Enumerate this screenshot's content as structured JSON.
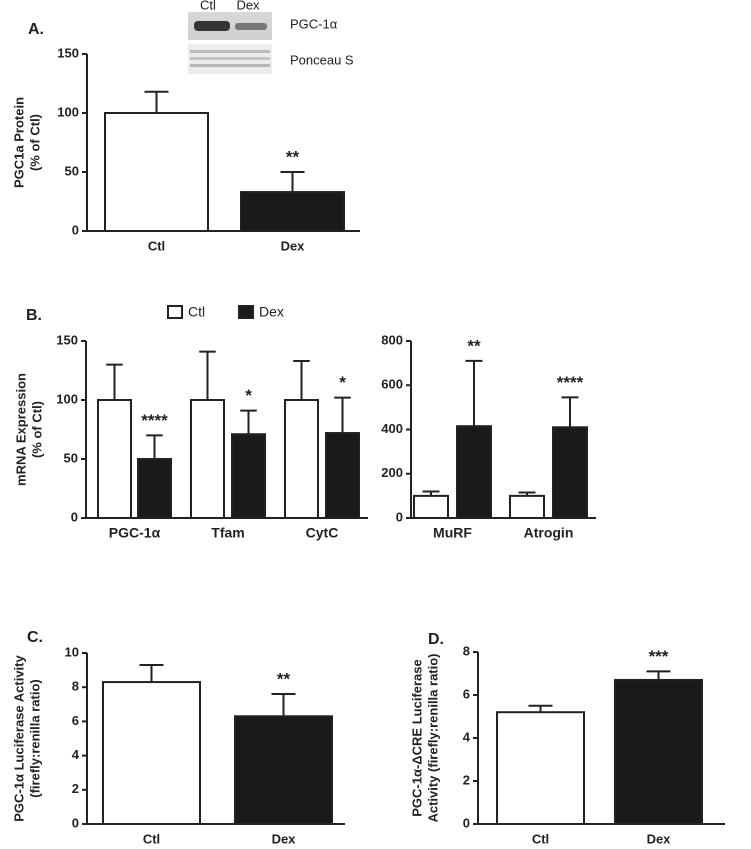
{
  "chart_data": [
    {
      "type": "bar",
      "panel": "A.",
      "ylabel": [
        "PGC1a Protein",
        "(% of Ctl)"
      ],
      "categories": [
        "Ctl",
        "Dex"
      ],
      "values": [
        100,
        33
      ],
      "errors": [
        18,
        17
      ],
      "colors": [
        "#ffffff",
        "#1a1a1a"
      ],
      "annotations": [
        null,
        "**"
      ],
      "ylim": [
        0,
        150
      ],
      "yticks": [
        0,
        50,
        100,
        150
      ],
      "blot": {
        "lanes": [
          "Ctl",
          "Dex"
        ],
        "rows": [
          "PGC-1α",
          "Ponceau S"
        ]
      }
    },
    {
      "type": "bar",
      "panel": "B.",
      "ylabel": [
        "mRNA Expression",
        "(% of  Ctl)"
      ],
      "categories": [
        "PGC-1α",
        "Tfam",
        "CytC"
      ],
      "series": [
        {
          "name": "Ctl",
          "color": "#ffffff",
          "values": [
            100,
            100,
            100
          ],
          "errors": [
            30,
            41,
            33
          ]
        },
        {
          "name": "Dex",
          "color": "#1a1a1a",
          "values": [
            50,
            71,
            72
          ],
          "errors": [
            20,
            20,
            30
          ]
        }
      ],
      "annotations": [
        "****",
        "*",
        "*"
      ],
      "ylim": [
        0,
        150
      ],
      "yticks": [
        0,
        50,
        100,
        150
      ],
      "legend": "top"
    },
    {
      "type": "bar",
      "categories": [
        "MuRF",
        "Atrogin"
      ],
      "series": [
        {
          "color": "#ffffff",
          "values": [
            100,
            100
          ],
          "errors": [
            20,
            15
          ]
        },
        {
          "color": "#1a1a1a",
          "values": [
            415,
            410
          ],
          "errors": [
            295,
            135
          ]
        }
      ],
      "annotations": [
        "**",
        "****"
      ],
      "ylim": [
        0,
        800
      ],
      "yticks": [
        0,
        200,
        400,
        600,
        800
      ]
    },
    {
      "type": "bar",
      "panel": "C.",
      "ylabel": [
        "PGC-1α Luciferase Activity",
        "(firefly:renilla ratio)"
      ],
      "categories": [
        "Ctl",
        "Dex"
      ],
      "values": [
        8.3,
        6.3
      ],
      "errors": [
        1.0,
        1.3
      ],
      "colors": [
        "#ffffff",
        "#1a1a1a"
      ],
      "annotations": [
        null,
        "**"
      ],
      "ylim": [
        0,
        10
      ],
      "yticks": [
        0,
        2,
        4,
        6,
        8,
        10
      ]
    },
    {
      "type": "bar",
      "panel": "D.",
      "ylabel": [
        "PGC-1α-ΔCRE Luciferase",
        "Activity (firefly:renilla ratio)"
      ],
      "categories": [
        "Ctl",
        "Dex"
      ],
      "values": [
        5.2,
        6.7
      ],
      "errors": [
        0.3,
        0.4
      ],
      "colors": [
        "#ffffff",
        "#1a1a1a"
      ],
      "annotations": [
        null,
        "***"
      ],
      "ylim": [
        0,
        8
      ],
      "yticks": [
        0,
        2,
        4,
        6,
        8
      ]
    }
  ]
}
